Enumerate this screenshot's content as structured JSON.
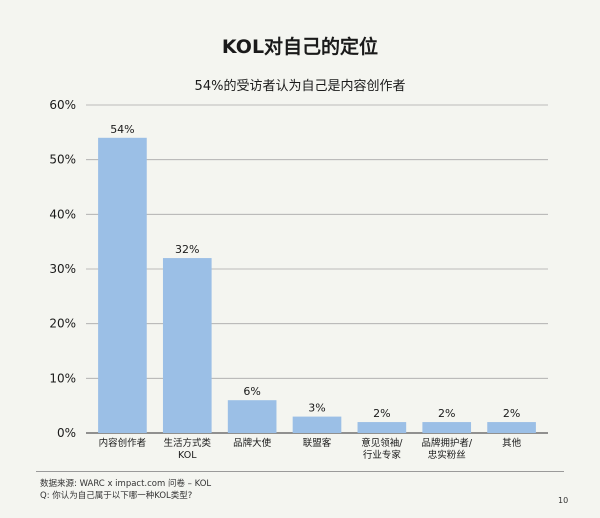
{
  "title": "KOL对自己的定位",
  "subtitle": "54%的受访者认为自己是内容创作者",
  "source_line1": "数据来源: WARC x impact.com 问卷 – KOL",
  "source_line2": "Q: 你认为自己属于以下哪一种KOL类型?",
  "page_number": "10",
  "colors": {
    "bar": "#9bbfe6",
    "background": "#f4f5f0",
    "grid": "#a8a8a8"
  },
  "chart_data": {
    "type": "bar",
    "title": "KOL对自己的定位",
    "subtitle": "54%的受访者认为自己是内容创作者",
    "categories": [
      [
        "内容创作者"
      ],
      [
        "生活方式类",
        "KOL"
      ],
      [
        "品牌大使"
      ],
      [
        "联盟客"
      ],
      [
        "意见领袖/",
        "行业专家"
      ],
      [
        "品牌拥护者/",
        "忠实粉丝"
      ],
      [
        "其他"
      ]
    ],
    "values": [
      54,
      32,
      6,
      3,
      2,
      2,
      2
    ],
    "value_labels": [
      "54%",
      "32%",
      "6%",
      "3%",
      "2%",
      "2%",
      "2%"
    ],
    "ylim": [
      0,
      60
    ],
    "yticks": [
      0,
      10,
      20,
      30,
      40,
      50,
      60
    ],
    "ytick_labels": [
      "0%",
      "10%",
      "20%",
      "30%",
      "40%",
      "50%",
      "60%"
    ],
    "grid": true,
    "legend": "none"
  }
}
